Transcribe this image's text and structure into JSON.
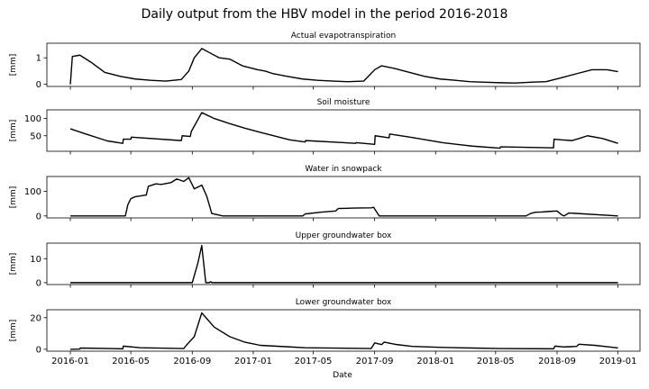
{
  "chart_data": {
    "type": "line",
    "title": "Daily output from the HBV model in the period 2016-2018",
    "xlabel": "Date",
    "x_ticks": [
      "2016-01",
      "2016-05",
      "2016-09",
      "2017-01",
      "2017-05",
      "2017-09",
      "2018-01",
      "2018-05",
      "2018-09",
      "2019-01"
    ],
    "xlim": [
      "2015-11-15",
      "2019-02-14"
    ],
    "panels": [
      {
        "title": "Actual evapotranspiration",
        "ylabel": "[mm]",
        "ylim": [
          -0.08,
          1.55
        ],
        "y_ticks": [
          0,
          1
        ],
        "series": {
          "x": [
            "2016-01-01",
            "2016-01-05",
            "2016-01-20",
            "2016-02-10",
            "2016-03-10",
            "2016-04-10",
            "2016-05-10",
            "2016-06-10",
            "2016-07-10",
            "2016-08-10",
            "2016-08-25",
            "2016-09-05",
            "2016-09-20",
            "2016-10-05",
            "2016-10-25",
            "2016-11-15",
            "2016-12-10",
            "2017-01-10",
            "2017-01-25",
            "2017-02-10",
            "2017-03-10",
            "2017-04-10",
            "2017-05-10",
            "2017-06-10",
            "2017-07-10",
            "2017-08-10",
            "2017-09-01",
            "2017-09-15",
            "2017-10-10",
            "2017-11-10",
            "2017-12-10",
            "2018-01-10",
            "2018-02-10",
            "2018-03-10",
            "2018-04-10",
            "2018-05-10",
            "2018-06-10",
            "2018-07-10",
            "2018-08-10",
            "2018-09-10",
            "2018-10-10",
            "2018-11-10",
            "2018-12-10",
            "2019-01-01"
          ],
          "y": [
            0.0,
            1.05,
            1.1,
            0.85,
            0.45,
            0.3,
            0.2,
            0.15,
            0.12,
            0.18,
            0.5,
            1.0,
            1.35,
            1.2,
            1.0,
            0.95,
            0.7,
            0.55,
            0.5,
            0.4,
            0.3,
            0.2,
            0.15,
            0.12,
            0.1,
            0.12,
            0.55,
            0.7,
            0.6,
            0.45,
            0.3,
            0.2,
            0.15,
            0.1,
            0.08,
            0.06,
            0.05,
            0.08,
            0.1,
            0.25,
            0.4,
            0.55,
            0.55,
            0.48
          ]
        }
      },
      {
        "title": "Soil moisture",
        "ylabel": "[mm]",
        "ylim": [
          5,
          125
        ],
        "y_ticks": [
          50,
          100
        ],
        "series": {
          "x": [
            "2016-01-01",
            "2016-02-01",
            "2016-03-15",
            "2016-04-15",
            "2016-04-16",
            "2016-05-01",
            "2016-05-02",
            "2016-08-10",
            "2016-08-12",
            "2016-08-28",
            "2016-08-30",
            "2016-09-20",
            "2016-10-15",
            "2016-11-15",
            "2016-12-15",
            "2017-01-15",
            "2017-03-15",
            "2017-04-15",
            "2017-04-16",
            "2017-07-25",
            "2017-07-26",
            "2017-09-01",
            "2017-09-02",
            "2017-09-30",
            "2017-10-01",
            "2017-11-15",
            "2018-01-15",
            "2018-03-15",
            "2018-05-10",
            "2018-05-11",
            "2018-08-25",
            "2018-08-26",
            "2018-09-10",
            "2018-10-01",
            "2018-10-15",
            "2018-11-01",
            "2018-12-01",
            "2019-01-01"
          ],
          "y": [
            70,
            55,
            35,
            28,
            40,
            40,
            46,
            36,
            50,
            48,
            62,
            117,
            100,
            85,
            72,
            60,
            38,
            32,
            36,
            28,
            30,
            25,
            50,
            44,
            55,
            45,
            30,
            20,
            14,
            18,
            15,
            40,
            38,
            36,
            42,
            50,
            42,
            28
          ]
        }
      },
      {
        "title": "Water in snowpack",
        "ylabel": "[mm]",
        "ylim": [
          -8,
          160
        ],
        "y_ticks": [
          0,
          100
        ],
        "series": {
          "x": [
            "2016-01-01",
            "2016-04-20",
            "2016-04-25",
            "2016-05-01",
            "2016-05-10",
            "2016-06-01",
            "2016-06-05",
            "2016-06-20",
            "2016-07-01",
            "2016-07-20",
            "2016-08-01",
            "2016-08-15",
            "2016-08-25",
            "2016-09-05",
            "2016-09-20",
            "2016-09-30",
            "2016-10-10",
            "2016-11-01",
            "2017-04-10",
            "2017-04-15",
            "2017-05-15",
            "2017-06-15",
            "2017-06-20",
            "2017-07-20",
            "2017-08-25",
            "2017-08-30",
            "2017-09-10",
            "2018-07-01",
            "2018-07-10",
            "2018-07-20",
            "2018-08-01",
            "2018-08-15",
            "2018-09-01",
            "2018-09-10",
            "2018-09-15",
            "2018-09-25",
            "2019-01-01"
          ],
          "y": [
            0,
            0,
            45,
            70,
            78,
            85,
            120,
            130,
            128,
            135,
            150,
            140,
            155,
            110,
            125,
            80,
            10,
            0,
            0,
            8,
            15,
            20,
            30,
            32,
            33,
            35,
            0,
            0,
            10,
            15,
            16,
            18,
            20,
            5,
            0,
            12,
            0
          ]
        }
      },
      {
        "title": "Upper groundwater box",
        "ylabel": "[mm]",
        "ylim": [
          -0.8,
          16.5
        ],
        "y_ticks": [
          0,
          10
        ],
        "series": {
          "x": [
            "2016-01-01",
            "2016-09-01",
            "2016-09-12",
            "2016-09-20",
            "2016-09-28",
            "2016-10-05",
            "2016-10-08",
            "2016-10-10",
            "2016-10-12",
            "2019-01-01"
          ],
          "y": [
            0,
            0,
            8,
            15.5,
            0,
            0,
            0.4,
            0,
            0,
            0
          ]
        }
      },
      {
        "title": "Lower groundwater box",
        "ylabel": "[mm]",
        "ylim": [
          -1.2,
          25
        ],
        "y_ticks": [
          0,
          20
        ],
        "series": {
          "x": [
            "2016-01-01",
            "2016-01-20",
            "2016-01-21",
            "2016-04-15",
            "2016-04-16",
            "2016-05-20",
            "2016-08-15",
            "2016-08-20",
            "2016-09-05",
            "2016-09-20",
            "2016-10-15",
            "2016-11-15",
            "2016-12-15",
            "2017-01-15",
            "2017-03-15",
            "2017-04-15",
            "2017-08-25",
            "2017-09-01",
            "2017-09-15",
            "2017-09-20",
            "2017-10-15",
            "2017-11-15",
            "2018-01-15",
            "2018-03-15",
            "2018-05-10",
            "2018-08-25",
            "2018-08-28",
            "2018-09-15",
            "2018-10-10",
            "2018-10-15",
            "2018-11-15",
            "2018-12-15",
            "2019-01-01"
          ],
          "y": [
            0.0,
            0.1,
            0.8,
            0.3,
            2.0,
            1.0,
            0.5,
            2.5,
            8.0,
            23.0,
            14.0,
            8.0,
            4.5,
            2.5,
            1.5,
            1.0,
            0.5,
            4.0,
            3.0,
            4.5,
            3.0,
            1.8,
            1.2,
            0.8,
            0.5,
            0.3,
            2.0,
            1.5,
            1.8,
            3.2,
            2.5,
            1.5,
            0.8
          ]
        }
      }
    ]
  }
}
